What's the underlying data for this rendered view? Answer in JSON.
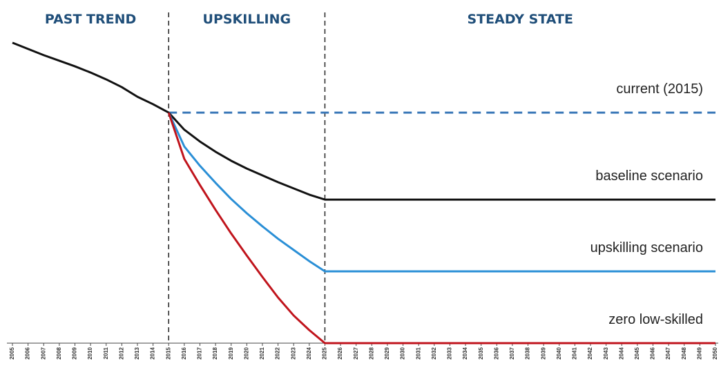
{
  "chart_data": {
    "type": "line",
    "x": [
      2005,
      2006,
      2007,
      2008,
      2009,
      2010,
      2011,
      2012,
      2013,
      2014,
      2015,
      2016,
      2017,
      2018,
      2019,
      2020,
      2021,
      2022,
      2023,
      2024,
      2025,
      2026,
      2027,
      2028,
      2029,
      2030,
      2031,
      2032,
      2033,
      2034,
      2035,
      2036,
      2037,
      2038,
      2039,
      2040,
      2041,
      2042,
      2043,
      2044,
      2045,
      2046,
      2047,
      2048,
      2049,
      2050
    ],
    "xlim": [
      2005,
      2050
    ],
    "xticks": [
      2005,
      2006,
      2007,
      2008,
      2009,
      2010,
      2011,
      2012,
      2013,
      2014,
      2015,
      2016,
      2017,
      2018,
      2019,
      2020,
      2021,
      2022,
      2023,
      2024,
      2025,
      2026,
      2027,
      2028,
      2029,
      2030,
      2031,
      2032,
      2033,
      2034,
      2035,
      2036,
      2037,
      2038,
      2039,
      2040,
      2041,
      2042,
      2043,
      2044,
      2045,
      2046,
      2047,
      2048,
      2049,
      2050
    ],
    "ylim": [
      0,
      100
    ],
    "phases": [
      {
        "label": "PAST TREND",
        "from": 2005,
        "to": 2015
      },
      {
        "label": "UPSKILLING",
        "from": 2015,
        "to": 2025
      },
      {
        "label": "STEADY STATE",
        "from": 2025,
        "to": 2050
      }
    ],
    "series": [
      {
        "name": "current (2015)",
        "color": "#3a78b8",
        "dashed": true,
        "values": [
          null,
          null,
          null,
          null,
          null,
          null,
          null,
          null,
          null,
          null,
          74.2,
          74.2,
          74.2,
          74.2,
          74.2,
          74.2,
          74.2,
          74.2,
          74.2,
          74.2,
          74.2,
          74.2,
          74.2,
          74.2,
          74.2,
          74.2,
          74.2,
          74.2,
          74.2,
          74.2,
          74.2,
          74.2,
          74.2,
          74.2,
          74.2,
          74.2,
          74.2,
          74.2,
          74.2,
          74.2,
          74.2,
          74.2,
          74.2,
          74.2,
          74.2,
          74.2
        ]
      },
      {
        "name": "baseline scenario",
        "color": "#111111",
        "dashed": false,
        "values": [
          96.7,
          94.7,
          92.7,
          90.9,
          89.1,
          87.1,
          84.9,
          82.4,
          79.3,
          76.9,
          74.2,
          68.7,
          64.9,
          61.6,
          58.7,
          56.2,
          54.0,
          51.8,
          49.8,
          47.8,
          46.2,
          46.2,
          46.2,
          46.2,
          46.2,
          46.2,
          46.2,
          46.2,
          46.2,
          46.2,
          46.2,
          46.2,
          46.2,
          46.2,
          46.2,
          46.2,
          46.2,
          46.2,
          46.2,
          46.2,
          46.2,
          46.2,
          46.2,
          46.2,
          46.2,
          46.2
        ]
      },
      {
        "name": "upskilling scenario",
        "color": "#2a8fd6",
        "dashed": false,
        "values": [
          null,
          null,
          null,
          null,
          null,
          null,
          null,
          null,
          null,
          null,
          74.2,
          63.3,
          57.1,
          51.6,
          46.4,
          41.8,
          37.6,
          33.6,
          30.0,
          26.4,
          23.1,
          23.1,
          23.1,
          23.1,
          23.1,
          23.1,
          23.1,
          23.1,
          23.1,
          23.1,
          23.1,
          23.1,
          23.1,
          23.1,
          23.1,
          23.1,
          23.1,
          23.1,
          23.1,
          23.1,
          23.1,
          23.1,
          23.1,
          23.1,
          23.1,
          23.1
        ]
      },
      {
        "name": "zero low-skilled",
        "color": "#c0141c",
        "dashed": false,
        "values": [
          null,
          null,
          null,
          null,
          null,
          null,
          null,
          null,
          null,
          null,
          74.2,
          59.3,
          50.9,
          42.9,
          35.3,
          28.2,
          21.3,
          14.7,
          8.9,
          4.2,
          0,
          0,
          0,
          0,
          0,
          0,
          0,
          0,
          0,
          0,
          0,
          0,
          0,
          0,
          0,
          0,
          0,
          0,
          0,
          0,
          0,
          0,
          0,
          0,
          0,
          0
        ]
      }
    ]
  }
}
